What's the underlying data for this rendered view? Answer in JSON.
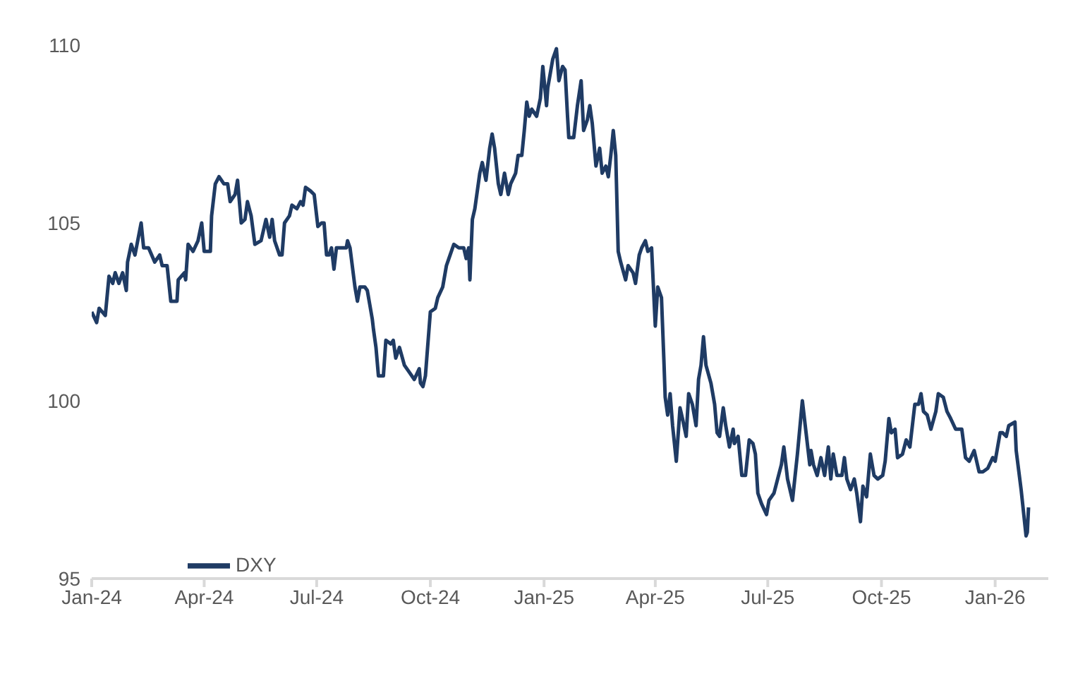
{
  "chart_data": {
    "type": "line",
    "legend": "bottom left",
    "grid": false,
    "marker": "none",
    "line_style": "solid",
    "xlim": [
      "2024-01-01",
      "2026-02-13"
    ],
    "xticks": [
      {
        "value": "2024-01-01",
        "label": "Jan-24"
      },
      {
        "value": "2024-04-01",
        "label": "Apr-24"
      },
      {
        "value": "2024-07-01",
        "label": "Jul-24"
      },
      {
        "value": "2024-10-01",
        "label": "Oct-24"
      },
      {
        "value": "2025-01-01",
        "label": "Jan-25"
      },
      {
        "value": "2025-04-01",
        "label": "Apr-25"
      },
      {
        "value": "2025-07-01",
        "label": "Jul-25"
      },
      {
        "value": "2025-10-01",
        "label": "Oct-25"
      },
      {
        "value": "2026-01-01",
        "label": "Jan-26"
      }
    ],
    "ylim": [
      95,
      110
    ],
    "yticks": [
      95,
      100,
      105,
      110
    ],
    "x": [
      "2024-01-01",
      "2024-01-05",
      "2024-01-07",
      "2024-01-12",
      "2024-01-15",
      "2024-01-18",
      "2024-01-20",
      "2024-01-23",
      "2024-01-26",
      "2024-01-29",
      "2024-01-30",
      "2024-02-02",
      "2024-02-05",
      "2024-02-10",
      "2024-02-12",
      "2024-02-16",
      "2024-02-21",
      "2024-02-25",
      "2024-02-27",
      "2024-03-02",
      "2024-03-05",
      "2024-03-10",
      "2024-03-11",
      "2024-03-16",
      "2024-03-17",
      "2024-03-19",
      "2024-03-23",
      "2024-03-27",
      "2024-03-30",
      "2024-04-01",
      "2024-04-06",
      "2024-04-07",
      "2024-04-10",
      "2024-04-13",
      "2024-04-17",
      "2024-04-20",
      "2024-04-22",
      "2024-04-26",
      "2024-04-28",
      "2024-05-01",
      "2024-05-04",
      "2024-05-06",
      "2024-05-09",
      "2024-05-12",
      "2024-05-17",
      "2024-05-21",
      "2024-05-24",
      "2024-05-26",
      "2024-05-28",
      "2024-06-01",
      "2024-06-03",
      "2024-06-05",
      "2024-06-09",
      "2024-06-11",
      "2024-06-15",
      "2024-06-18",
      "2024-06-20",
      "2024-06-22",
      "2024-06-26",
      "2024-06-29",
      "2024-07-02",
      "2024-07-05",
      "2024-07-07",
      "2024-07-09",
      "2024-07-11",
      "2024-07-13",
      "2024-07-15",
      "2024-07-17",
      "2024-07-21",
      "2024-07-25",
      "2024-07-26",
      "2024-07-28",
      "2024-08-01",
      "2024-08-03",
      "2024-08-05",
      "2024-08-09",
      "2024-08-11",
      "2024-08-13",
      "2024-08-15",
      "2024-08-16",
      "2024-08-18",
      "2024-08-20",
      "2024-08-24",
      "2024-08-26",
      "2024-08-30",
      "2024-09-01",
      "2024-09-03",
      "2024-09-06",
      "2024-09-10",
      "2024-09-14",
      "2024-09-18",
      "2024-09-22",
      "2024-09-23",
      "2024-09-25",
      "2024-09-27",
      "2024-10-01",
      "2024-10-05",
      "2024-10-07",
      "2024-10-11",
      "2024-10-14",
      "2024-10-16",
      "2024-10-20",
      "2024-10-24",
      "2024-10-28",
      "2024-10-30",
      "2024-11-01",
      "2024-11-02",
      "2024-11-04",
      "2024-11-06",
      "2024-11-10",
      "2024-11-12",
      "2024-11-15",
      "2024-11-18",
      "2024-11-20",
      "2024-11-22",
      "2024-11-25",
      "2024-11-27",
      "2024-11-30",
      "2024-12-03",
      "2024-12-05",
      "2024-12-09",
      "2024-12-11",
      "2024-12-14",
      "2024-12-16",
      "2024-12-18",
      "2024-12-20",
      "2024-12-22",
      "2024-12-26",
      "2024-12-29",
      "2024-12-31",
      "2025-01-03",
      "2025-01-04",
      "2025-01-08",
      "2025-01-11",
      "2025-01-13",
      "2025-01-16",
      "2025-01-18",
      "2025-01-20",
      "2025-01-21",
      "2025-01-25",
      "2025-01-28",
      "2025-01-31",
      "2025-02-02",
      "2025-02-05",
      "2025-02-07",
      "2025-02-09",
      "2025-02-12",
      "2025-02-15",
      "2025-02-17",
      "2025-02-20",
      "2025-02-22",
      "2025-02-24",
      "2025-02-26",
      "2025-02-28",
      "2025-03-02",
      "2025-03-04",
      "2025-03-08",
      "2025-03-10",
      "2025-03-14",
      "2025-03-16",
      "2025-03-19",
      "2025-03-21",
      "2025-03-24",
      "2025-03-26",
      "2025-03-29",
      "2025-04-01",
      "2025-04-03",
      "2025-04-06",
      "2025-04-08",
      "2025-04-09",
      "2025-04-11",
      "2025-04-13",
      "2025-04-15",
      "2025-04-18",
      "2025-04-21",
      "2025-04-23",
      "2025-04-26",
      "2025-04-28",
      "2025-05-01",
      "2025-05-04",
      "2025-05-06",
      "2025-05-08",
      "2025-05-10",
      "2025-05-12",
      "2025-05-16",
      "2025-05-19",
      "2025-05-21",
      "2025-05-23",
      "2025-05-26",
      "2025-05-28",
      "2025-05-31",
      "2025-06-03",
      "2025-06-04",
      "2025-06-07",
      "2025-06-10",
      "2025-06-13",
      "2025-06-16",
      "2025-06-19",
      "2025-06-21",
      "2025-06-23",
      "2025-06-26",
      "2025-06-30",
      "2025-07-02",
      "2025-07-06",
      "2025-07-09",
      "2025-07-12",
      "2025-07-14",
      "2025-07-17",
      "2025-07-21",
      "2025-07-25",
      "2025-07-29",
      "2025-08-01",
      "2025-08-04",
      "2025-08-05",
      "2025-08-07",
      "2025-08-10",
      "2025-08-13",
      "2025-08-16",
      "2025-08-19",
      "2025-08-21",
      "2025-08-23",
      "2025-08-26",
      "2025-08-30",
      "2025-09-01",
      "2025-09-03",
      "2025-09-06",
      "2025-09-09",
      "2025-09-11",
      "2025-09-14",
      "2025-09-16",
      "2025-09-19",
      "2025-09-22",
      "2025-09-25",
      "2025-09-28",
      "2025-10-02",
      "2025-10-04",
      "2025-10-07",
      "2025-10-09",
      "2025-10-12",
      "2025-10-14",
      "2025-10-18",
      "2025-10-21",
      "2025-10-24",
      "2025-10-28",
      "2025-10-31",
      "2025-11-02",
      "2025-11-04",
      "2025-11-07",
      "2025-11-10",
      "2025-11-14",
      "2025-11-16",
      "2025-11-20",
      "2025-11-23",
      "2025-11-26",
      "2025-11-30",
      "2025-12-01",
      "2025-12-05",
      "2025-12-08",
      "2025-12-11",
      "2025-12-15",
      "2025-12-19",
      "2025-12-22",
      "2025-12-26",
      "2025-12-30",
      "2026-01-01",
      "2026-01-05",
      "2026-01-07",
      "2026-01-10",
      "2026-01-12",
      "2026-01-17",
      "2026-01-18",
      "2026-01-22",
      "2026-01-26",
      "2026-01-27",
      "2026-01-28"
    ],
    "series": [
      {
        "name": "DXY",
        "color": "#1f3b64",
        "values": [
          102.5,
          102.2,
          102.6,
          102.4,
          103.5,
          103.3,
          103.6,
          103.3,
          103.6,
          103.1,
          103.9,
          104.4,
          104.1,
          105.0,
          104.3,
          104.3,
          103.9,
          104.1,
          103.8,
          103.8,
          102.8,
          102.8,
          103.4,
          103.6,
          103.4,
          104.4,
          104.2,
          104.5,
          105.0,
          104.2,
          104.2,
          105.2,
          106.1,
          106.3,
          106.1,
          106.1,
          105.6,
          105.8,
          106.2,
          105.0,
          105.1,
          105.6,
          105.2,
          104.4,
          104.5,
          105.1,
          104.6,
          105.1,
          104.5,
          104.1,
          104.1,
          105.0,
          105.2,
          105.5,
          105.4,
          105.6,
          105.5,
          106.0,
          105.9,
          105.8,
          104.9,
          105.0,
          105.0,
          104.1,
          104.1,
          104.3,
          103.7,
          104.3,
          104.3,
          104.3,
          104.5,
          104.3,
          103.2,
          102.8,
          103.2,
          103.2,
          103.1,
          102.7,
          102.3,
          102.0,
          101.5,
          100.7,
          100.7,
          101.7,
          101.6,
          101.7,
          101.2,
          101.5,
          101.0,
          100.8,
          100.6,
          100.9,
          100.5,
          100.4,
          100.7,
          102.5,
          102.6,
          102.9,
          103.2,
          103.8,
          104.0,
          104.4,
          104.3,
          104.3,
          104.0,
          104.3,
          103.4,
          105.1,
          105.4,
          106.4,
          106.7,
          106.2,
          107.1,
          107.5,
          107.1,
          106.1,
          105.8,
          106.4,
          105.8,
          106.1,
          106.4,
          106.9,
          106.9,
          107.6,
          108.4,
          108.0,
          108.2,
          108.0,
          108.5,
          109.4,
          108.3,
          108.8,
          109.6,
          109.9,
          109.0,
          109.4,
          109.3,
          108.0,
          107.4,
          107.4,
          108.3,
          109.0,
          107.6,
          107.9,
          108.3,
          107.8,
          106.6,
          107.1,
          106.4,
          106.6,
          106.3,
          106.9,
          107.6,
          106.9,
          104.2,
          103.9,
          103.4,
          103.8,
          103.6,
          103.3,
          104.1,
          104.3,
          104.5,
          104.2,
          104.3,
          102.1,
          103.2,
          102.9,
          101.1,
          100.1,
          99.6,
          100.2,
          99.3,
          98.3,
          99.8,
          99.5,
          99.0,
          100.2,
          99.9,
          99.3,
          100.6,
          101.0,
          101.8,
          101.0,
          100.5,
          99.9,
          99.1,
          99.0,
          99.8,
          99.3,
          98.7,
          99.2,
          98.8,
          99.0,
          97.9,
          97.9,
          98.9,
          98.8,
          98.5,
          97.4,
          97.1,
          96.8,
          97.2,
          97.4,
          97.8,
          98.2,
          98.7,
          97.8,
          97.2,
          98.5,
          100.0,
          99.1,
          98.2,
          98.6,
          98.2,
          97.9,
          98.4,
          97.9,
          98.7,
          97.8,
          98.5,
          97.9,
          97.9,
          98.4,
          97.8,
          97.5,
          97.8,
          97.4,
          96.6,
          97.6,
          97.3,
          98.5,
          97.9,
          97.8,
          97.9,
          98.3,
          99.5,
          99.1,
          99.2,
          98.4,
          98.5,
          98.9,
          98.7,
          99.9,
          99.9,
          100.2,
          99.7,
          99.6,
          99.2,
          99.7,
          100.2,
          100.1,
          99.7,
          99.5,
          99.2,
          99.2,
          99.2,
          98.4,
          98.3,
          98.6,
          98.0,
          98.0,
          98.1,
          98.4,
          98.3,
          99.1,
          99.1,
          99.0,
          99.3,
          99.4,
          98.6,
          97.5,
          96.2,
          96.3,
          97.0
        ]
      }
    ]
  }
}
